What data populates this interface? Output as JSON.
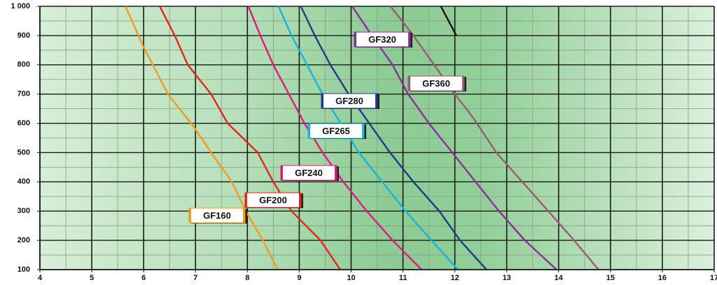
{
  "chart_data": {
    "type": "line",
    "xlim": [
      4,
      17
    ],
    "xticks": [
      4,
      5,
      6,
      7,
      8,
      9,
      10,
      11,
      12,
      13,
      14,
      15,
      16,
      17
    ],
    "ylim": [
      100,
      1000
    ],
    "yticks": [
      100,
      200,
      300,
      400,
      500,
      600,
      700,
      800,
      900,
      {
        "value": 1000,
        "label": "1 000"
      }
    ],
    "grid": true,
    "series": [
      {
        "name": "GF160",
        "color": "#f39a1e",
        "x": [
          5.65,
          6.0,
          6.47,
          7.0,
          7.3,
          7.7,
          8.0,
          8.3,
          8.59
        ],
        "values": [
          1000,
          860,
          700,
          580,
          500,
          400,
          290,
          200,
          100
        ]
      },
      {
        "name": "GF200",
        "color": "#e3261c",
        "x": [
          6.31,
          6.6,
          6.85,
          7.3,
          7.62,
          8.2,
          8.5,
          8.85,
          9.41,
          9.79
        ],
        "values": [
          1000,
          900,
          800,
          700,
          600,
          500,
          400,
          300,
          200,
          100
        ]
      },
      {
        "name": "GF240",
        "color": "#e0197e",
        "x": [
          8.02,
          8.25,
          8.5,
          8.8,
          9.1,
          9.45,
          9.85,
          10.3,
          10.8,
          11.36
        ],
        "values": [
          1000,
          900,
          800,
          700,
          600,
          500,
          400,
          300,
          200,
          100
        ]
      },
      {
        "name": "GF265",
        "color": "#14b5de",
        "x": [
          8.6,
          8.85,
          9.15,
          9.45,
          9.8,
          10.15,
          10.6,
          11.05,
          11.55,
          12.06
        ],
        "values": [
          1000,
          900,
          800,
          700,
          600,
          500,
          400,
          300,
          200,
          100
        ]
      },
      {
        "name": "GF280",
        "color": "#1d3a8f",
        "x": [
          9.03,
          9.3,
          9.6,
          9.95,
          10.35,
          10.75,
          11.2,
          11.7,
          12.1,
          12.61
        ],
        "values": [
          1000,
          900,
          800,
          700,
          600,
          500,
          400,
          300,
          200,
          100
        ]
      },
      {
        "name": "GF320",
        "color": "#8e2e9a",
        "x": [
          10.02,
          10.4,
          10.8,
          11.1,
          11.5,
          11.95,
          12.4,
          12.85,
          13.35,
          13.96
        ],
        "values": [
          1000,
          900,
          800,
          700,
          600,
          500,
          400,
          300,
          200,
          100
        ]
      },
      {
        "name": "GF360",
        "color": "#9a5a78",
        "x": [
          10.76,
          11.2,
          11.6,
          12.0,
          12.35,
          12.8,
          13.3,
          13.8,
          14.25,
          14.77
        ],
        "values": [
          1000,
          900,
          800,
          700,
          620,
          500,
          400,
          300,
          210,
          100
        ]
      },
      {
        "color": "#111111",
        "x": [
          11.73,
          12.03
        ],
        "values": [
          1000,
          900
        ]
      }
    ]
  }
}
